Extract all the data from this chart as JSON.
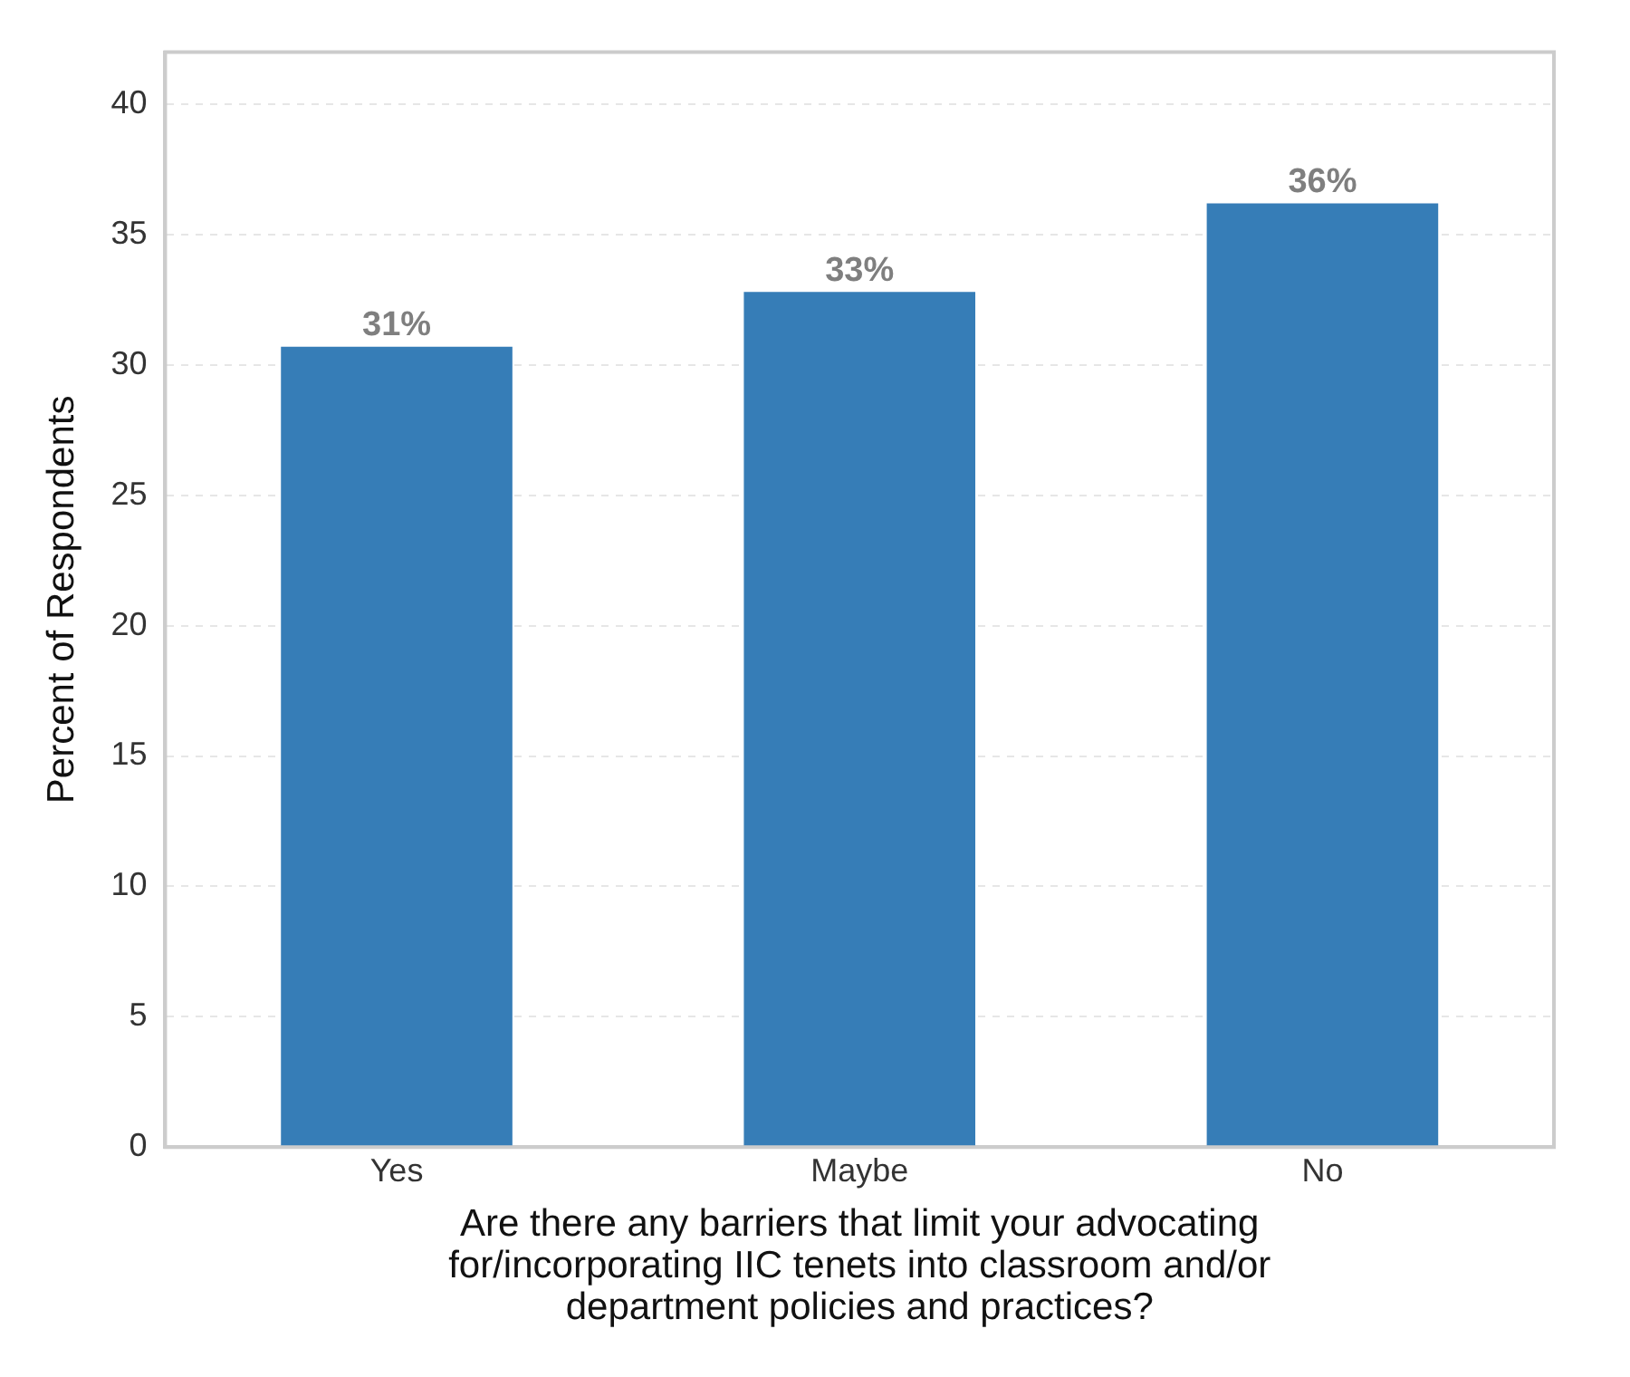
{
  "chart_data": {
    "type": "bar",
    "xlabel": "Are there any barriers that limit your advocating\nfor/incorporating IIC tenets into classroom and/or\ndepartment policies and practices?",
    "ylabel": "Percent of Respondents",
    "categories": [
      "Yes",
      "Maybe",
      "No"
    ],
    "values": [
      30.7,
      32.8,
      36.2
    ],
    "value_labels": [
      "31%",
      "33%",
      "36%"
    ],
    "color": "#367db7",
    "ylim": [
      0,
      42
    ],
    "yticks": [
      0,
      5,
      10,
      15,
      20,
      25,
      30,
      35,
      40
    ],
    "grid": "y",
    "legend": false
  }
}
